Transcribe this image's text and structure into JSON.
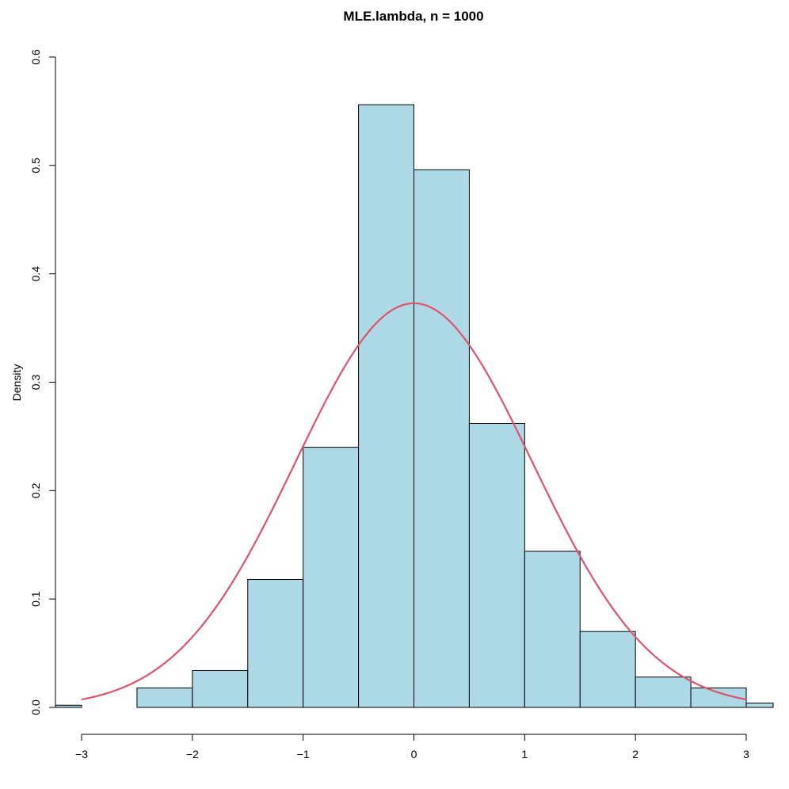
{
  "chart_data": {
    "type": "bar",
    "subtype": "histogram",
    "title": "MLE.lambda, n = 1000",
    "xlabel": "",
    "ylabel": "Density",
    "xlim": [
      -3,
      3.25
    ],
    "ylim": [
      0,
      0.6
    ],
    "x_ticks": [
      -3,
      -2,
      -1,
      0,
      1,
      2,
      3
    ],
    "x_tick_labels": [
      "−3",
      "−2",
      "−1",
      "0",
      "1",
      "2",
      "3"
    ],
    "y_ticks": [
      0.0,
      0.1,
      0.2,
      0.3,
      0.4,
      0.5,
      0.6
    ],
    "y_tick_labels": [
      "0.0",
      "0.1",
      "0.2",
      "0.3",
      "0.4",
      "0.5",
      "0.6"
    ],
    "bins": [
      {
        "x0": -3.5,
        "x1": -3.0,
        "density": 0.002
      },
      {
        "x0": -3.0,
        "x1": -2.5,
        "density": 0.0
      },
      {
        "x0": -2.5,
        "x1": -2.0,
        "density": 0.018
      },
      {
        "x0": -2.0,
        "x1": -1.5,
        "density": 0.034
      },
      {
        "x0": -1.5,
        "x1": -1.0,
        "density": 0.118
      },
      {
        "x0": -1.0,
        "x1": -0.5,
        "density": 0.24
      },
      {
        "x0": -0.5,
        "x1": 0.0,
        "density": 0.556
      },
      {
        "x0": 0.0,
        "x1": 0.5,
        "density": 0.496
      },
      {
        "x0": 0.5,
        "x1": 1.0,
        "density": 0.262
      },
      {
        "x0": 1.0,
        "x1": 1.5,
        "density": 0.144
      },
      {
        "x0": 1.5,
        "x1": 2.0,
        "density": 0.07
      },
      {
        "x0": 2.0,
        "x1": 2.5,
        "density": 0.028
      },
      {
        "x0": 2.5,
        "x1": 3.0,
        "density": 0.018
      },
      {
        "x0": 3.0,
        "x1": 3.5,
        "density": 0.004
      }
    ],
    "overlay": {
      "type": "line",
      "function": "normal density",
      "mean": 0,
      "sd": 1.07,
      "x_range": [
        -3,
        3
      ]
    },
    "grid": false,
    "colors": {
      "bar_fill": "#add8e6",
      "bar_stroke": "#000000",
      "curve": "#df536b"
    }
  }
}
